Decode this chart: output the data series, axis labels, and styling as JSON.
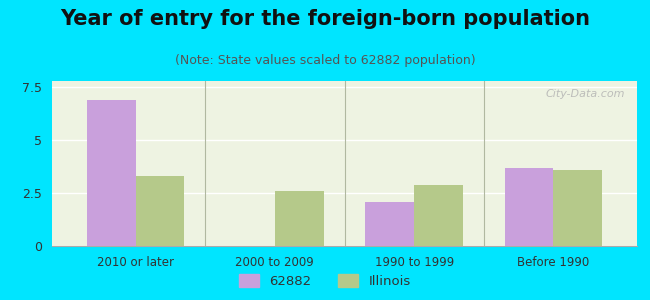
{
  "title": "Year of entry for the foreign-born population",
  "subtitle": "(Note: State values scaled to 62882 population)",
  "categories": [
    "2010 or later",
    "2000 to 2009",
    "1990 to 1999",
    "Before 1990"
  ],
  "values_62882": [
    6.9,
    0.0,
    2.1,
    3.7
  ],
  "values_illinois": [
    3.3,
    2.6,
    2.9,
    3.6
  ],
  "color_62882": "#c9a0dc",
  "color_illinois": "#b5c98a",
  "bar_width": 0.35,
  "ylim": [
    0,
    7.8
  ],
  "yticks": [
    0,
    2.5,
    5,
    7.5
  ],
  "background_outer": "#00e5ff",
  "background_inner": "#eef3e2",
  "legend_label_62882": "62882",
  "legend_label_illinois": "Illinois",
  "watermark": "City-Data.com",
  "title_fontsize": 15,
  "subtitle_fontsize": 9
}
